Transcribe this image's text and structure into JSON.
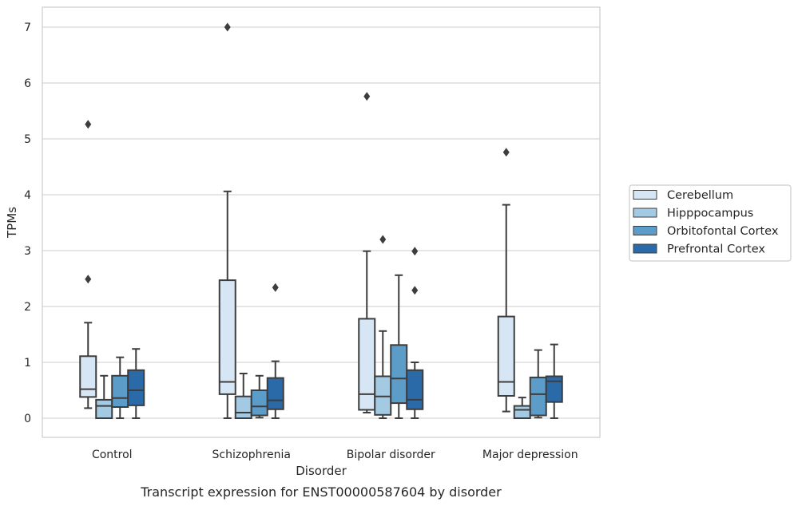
{
  "chart_data": {
    "type": "box",
    "caption": "Transcript expression for ENST00000587604 by disorder",
    "xlabel": "Disorder",
    "ylabel": "TPMs",
    "ylim": [
      -0.33,
      7.37
    ],
    "yticks": [
      0,
      1,
      2,
      3,
      4,
      5,
      6,
      7
    ],
    "grid": true,
    "legend_position": "right",
    "categories": [
      "Control",
      "Schizophrenia",
      "Bipolar disorder",
      "Major depression"
    ],
    "series": [
      {
        "name": "Cerebellum",
        "color": "#d7e6f5",
        "boxes": [
          {
            "whisker_low": 0.18,
            "q1": 0.38,
            "median": 0.52,
            "q3": 1.11,
            "whisker_high": 1.71,
            "outliers": [
              2.49,
              5.26
            ]
          },
          {
            "whisker_low": 0.0,
            "q1": 0.43,
            "median": 0.65,
            "q3": 2.47,
            "whisker_high": 4.06,
            "outliers": [
              7.0
            ]
          },
          {
            "whisker_low": 0.1,
            "q1": 0.15,
            "median": 0.43,
            "q3": 1.78,
            "whisker_high": 2.99,
            "outliers": [
              5.76
            ]
          },
          {
            "whisker_low": 0.12,
            "q1": 0.4,
            "median": 0.65,
            "q3": 1.82,
            "whisker_high": 3.82,
            "outliers": [
              4.76
            ]
          }
        ]
      },
      {
        "name": "Hipppocampus",
        "color": "#a3c9e3",
        "boxes": [
          {
            "whisker_low": 0.0,
            "q1": 0.0,
            "median": 0.22,
            "q3": 0.33,
            "whisker_high": 0.76,
            "outliers": []
          },
          {
            "whisker_low": 0.0,
            "q1": 0.0,
            "median": 0.1,
            "q3": 0.39,
            "whisker_high": 0.8,
            "outliers": []
          },
          {
            "whisker_low": 0.0,
            "q1": 0.06,
            "median": 0.39,
            "q3": 0.75,
            "whisker_high": 1.56,
            "outliers": [
              3.2
            ]
          },
          {
            "whisker_low": 0.0,
            "q1": 0.0,
            "median": 0.15,
            "q3": 0.22,
            "whisker_high": 0.37,
            "outliers": []
          }
        ]
      },
      {
        "name": "Orbitofontal Cortex",
        "color": "#5b9cc9",
        "boxes": [
          {
            "whisker_low": 0.0,
            "q1": 0.2,
            "median": 0.36,
            "q3": 0.76,
            "whisker_high": 1.09,
            "outliers": []
          },
          {
            "whisker_low": 0.01,
            "q1": 0.05,
            "median": 0.21,
            "q3": 0.5,
            "whisker_high": 0.76,
            "outliers": []
          },
          {
            "whisker_low": 0.0,
            "q1": 0.27,
            "median": 0.71,
            "q3": 1.31,
            "whisker_high": 2.56,
            "outliers": []
          },
          {
            "whisker_low": 0.01,
            "q1": 0.05,
            "median": 0.43,
            "q3": 0.73,
            "whisker_high": 1.22,
            "outliers": []
          }
        ]
      },
      {
        "name": "Prefrontal Cortex",
        "color": "#2a6aa9",
        "boxes": [
          {
            "whisker_low": 0.0,
            "q1": 0.23,
            "median": 0.5,
            "q3": 0.86,
            "whisker_high": 1.24,
            "outliers": []
          },
          {
            "whisker_low": 0.0,
            "q1": 0.16,
            "median": 0.32,
            "q3": 0.72,
            "whisker_high": 1.02,
            "outliers": [
              2.34
            ]
          },
          {
            "whisker_low": 0.0,
            "q1": 0.16,
            "median": 0.33,
            "q3": 0.86,
            "whisker_high": 1.0,
            "outliers": [
              2.29,
              2.99
            ]
          },
          {
            "whisker_low": 0.0,
            "q1": 0.29,
            "median": 0.66,
            "q3": 0.75,
            "whisker_high": 1.32,
            "outliers": []
          }
        ]
      }
    ]
  }
}
